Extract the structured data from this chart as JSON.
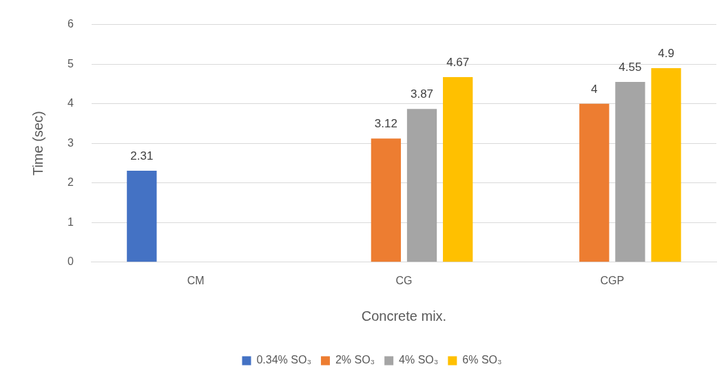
{
  "chart_data": {
    "type": "bar",
    "xlabel": "Concrete mix.",
    "ylabel": "Time (sec)",
    "categories": [
      "CM",
      "CG",
      "CGP"
    ],
    "series": [
      {
        "name": "0.34% SO₃",
        "color": "#4472c4",
        "values": [
          2.31,
          null,
          null
        ]
      },
      {
        "name": "2% SO₃",
        "color": "#ed7d31",
        "values": [
          null,
          3.12,
          4
        ]
      },
      {
        "name": "4% SO₃",
        "color": "#a5a5a5",
        "values": [
          null,
          3.87,
          4.55
        ]
      },
      {
        "name": "6% SO₃",
        "color": "#ffc000",
        "values": [
          null,
          4.67,
          4.9
        ]
      }
    ],
    "ylim": [
      0,
      6
    ],
    "yticks": [
      0,
      1,
      2,
      3,
      4,
      5,
      6
    ],
    "grid": "y",
    "legend": "bottom",
    "data_labels": true
  }
}
